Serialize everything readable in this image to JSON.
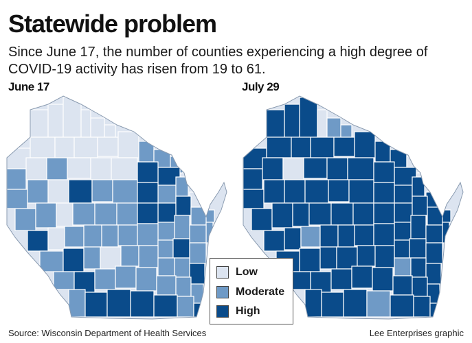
{
  "title": "Statewide problem",
  "subtitle": "Since June 17, the number of counties experiencing a high degree of COVID-19 activity has risen from 19 to 61.",
  "maps": [
    {
      "label": "June 17"
    },
    {
      "label": "July 29"
    }
  ],
  "legend": {
    "items": [
      {
        "label": "Low",
        "color": "#dce4f0"
      },
      {
        "label": "Moderate",
        "color": "#6f9ac6"
      },
      {
        "label": "High",
        "color": "#0a4b8a"
      }
    ]
  },
  "footer": {
    "source": "Source: Wisconsin Department of Health Services",
    "credit": "Lee Enterprises graphic"
  },
  "colors": {
    "low": "#dce4f0",
    "moderate": "#6f9ac6",
    "high": "#0a4b8a",
    "border": "#ffffff",
    "outline": "#8a9bb0"
  }
}
